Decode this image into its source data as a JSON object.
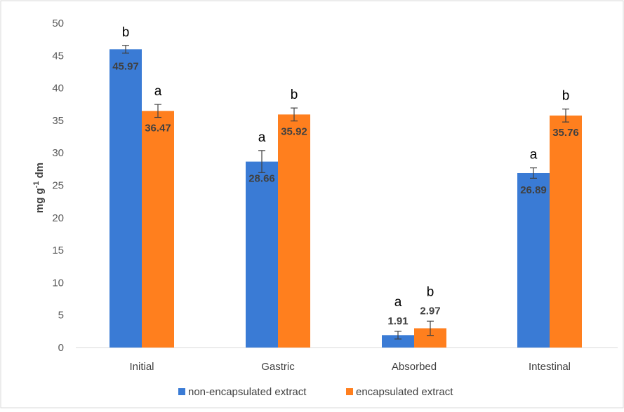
{
  "chart_data": {
    "type": "bar",
    "title": "",
    "xlabel": "",
    "ylabel": {
      "main": "mg g",
      "sup": "-1",
      "tail": " dm"
    },
    "ylim": [
      0,
      50
    ],
    "yticks": [
      "0",
      "5",
      "10",
      "15",
      "20",
      "25",
      "30",
      "35",
      "40",
      "45",
      "50"
    ],
    "grid": false,
    "legend_position": "bottom",
    "categories": [
      "Initial",
      "Gastric",
      "Absorbed",
      "Intestinal"
    ],
    "series": [
      {
        "name": "non-encapsulated extract",
        "color": "#3A7BD5",
        "values": [
          45.97,
          28.66,
          1.91,
          26.89
        ],
        "labels": [
          "45.97",
          "28.66",
          "1.91",
          "26.89"
        ],
        "errors": [
          0.6,
          1.7,
          0.6,
          0.8
        ],
        "significance": [
          "b",
          "a",
          "a",
          "a"
        ]
      },
      {
        "name": "encapsulated extract",
        "color": "#FF7F1E",
        "values": [
          36.47,
          35.92,
          2.97,
          35.76
        ],
        "labels": [
          "36.47",
          "35.92",
          "2.97",
          "35.76"
        ],
        "errors": [
          1.0,
          1.0,
          1.1,
          1.0
        ],
        "significance": [
          "a",
          "b",
          "b",
          "b"
        ]
      }
    ]
  }
}
